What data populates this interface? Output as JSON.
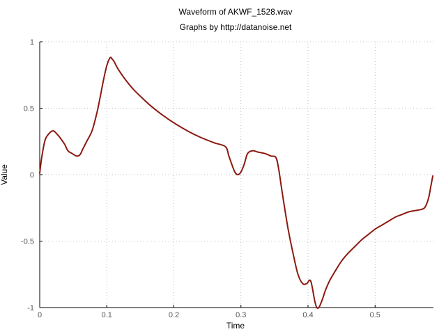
{
  "chart_data": {
    "type": "line",
    "title": "Waveform of AKWF_1528.wav",
    "subtitle": "Graphs by http://datanoise.net",
    "xlabel": "Time",
    "ylabel": "Value",
    "xlim": [
      0,
      0.587
    ],
    "ylim": [
      -1,
      1
    ],
    "xticks": [
      0,
      0.1,
      0.2,
      0.3,
      0.4,
      0.5
    ],
    "xtick_labels": [
      "0",
      "0.1",
      "0.2",
      "0.3",
      "0.4",
      "0.5"
    ],
    "yticks": [
      1,
      0.5,
      0,
      -0.5,
      -1
    ],
    "ytick_labels": [
      "1",
      "0.5",
      "0",
      "-0.5",
      "-1"
    ],
    "grid": true,
    "color": "#8b1a10",
    "series": [
      {
        "x": [
          0,
          0.003,
          0.008,
          0.014,
          0.02,
          0.025,
          0.03,
          0.037,
          0.042,
          0.048,
          0.055,
          0.06,
          0.064,
          0.07,
          0.078,
          0.085,
          0.09,
          0.095,
          0.1,
          0.105,
          0.108,
          0.111,
          0.115,
          0.12,
          0.13,
          0.14,
          0.15,
          0.165,
          0.18,
          0.2,
          0.22,
          0.24,
          0.26,
          0.277,
          0.282,
          0.29,
          0.295,
          0.3,
          0.305,
          0.31,
          0.318,
          0.325,
          0.335,
          0.345,
          0.352,
          0.356,
          0.362,
          0.37,
          0.378,
          0.385,
          0.392,
          0.398,
          0.404,
          0.41,
          0.413,
          0.416,
          0.419,
          0.422,
          0.426,
          0.432,
          0.44,
          0.45,
          0.46,
          0.47,
          0.48,
          0.49,
          0.5,
          0.51,
          0.52,
          0.53,
          0.54,
          0.55,
          0.56,
          0.57,
          0.575,
          0.58,
          0.583,
          0.586
        ],
        "y": [
          0.01,
          0.13,
          0.26,
          0.31,
          0.33,
          0.31,
          0.28,
          0.23,
          0.18,
          0.16,
          0.14,
          0.15,
          0.19,
          0.25,
          0.33,
          0.46,
          0.58,
          0.71,
          0.82,
          0.88,
          0.87,
          0.85,
          0.81,
          0.77,
          0.7,
          0.64,
          0.59,
          0.52,
          0.46,
          0.39,
          0.33,
          0.28,
          0.24,
          0.21,
          0.14,
          0.03,
          0.0,
          0.02,
          0.08,
          0.16,
          0.18,
          0.17,
          0.16,
          0.14,
          0.13,
          0.05,
          -0.15,
          -0.4,
          -0.6,
          -0.75,
          -0.82,
          -0.82,
          -0.8,
          -0.95,
          -1.0,
          -1.0,
          -0.97,
          -0.93,
          -0.87,
          -0.8,
          -0.73,
          -0.65,
          -0.59,
          -0.54,
          -0.49,
          -0.45,
          -0.41,
          -0.38,
          -0.35,
          -0.32,
          -0.3,
          -0.28,
          -0.27,
          -0.26,
          -0.24,
          -0.17,
          -0.09,
          -0.01
        ]
      }
    ]
  }
}
